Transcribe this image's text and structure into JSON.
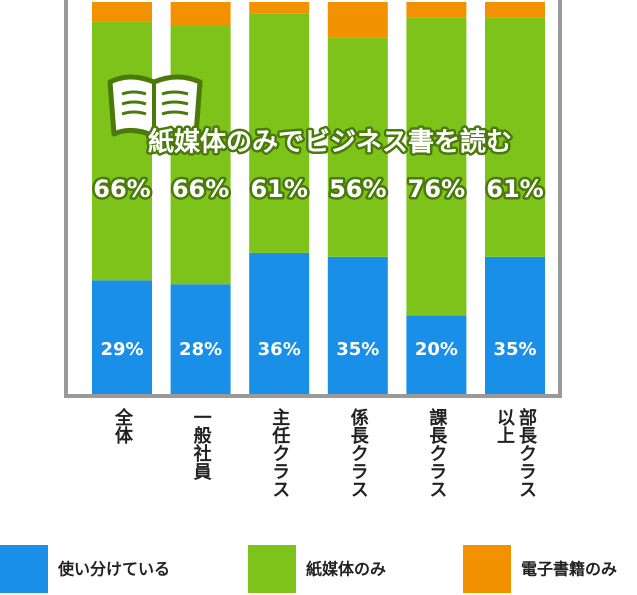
{
  "chart_data": {
    "type": "bar",
    "stacked": true,
    "annotation": "紙媒体のみでビジネス書を読む",
    "categories": [
      "全体",
      "一般社員",
      "主任クラス",
      "係長クラス",
      "課長クラス",
      "部長クラス以上"
    ],
    "ylim": [
      0,
      100
    ],
    "series": [
      {
        "name": "使い分けている",
        "color": "#1a8fe8",
        "values": [
          29,
          28,
          36,
          35,
          20,
          35
        ],
        "value_labels": [
          "29%",
          "28%",
          "36%",
          "35%",
          "20%",
          "35%"
        ]
      },
      {
        "name": "紙媒体のみ",
        "color": "#7dc31a",
        "values": [
          66,
          66,
          61,
          56,
          76,
          61
        ],
        "value_labels": [
          "66%",
          "66%",
          "61%",
          "56%",
          "76%",
          "61%"
        ]
      },
      {
        "name": "電子書籍のみ",
        "color": "#f39200",
        "values": [
          5,
          6,
          3,
          9,
          4,
          4
        ]
      }
    ]
  }
}
